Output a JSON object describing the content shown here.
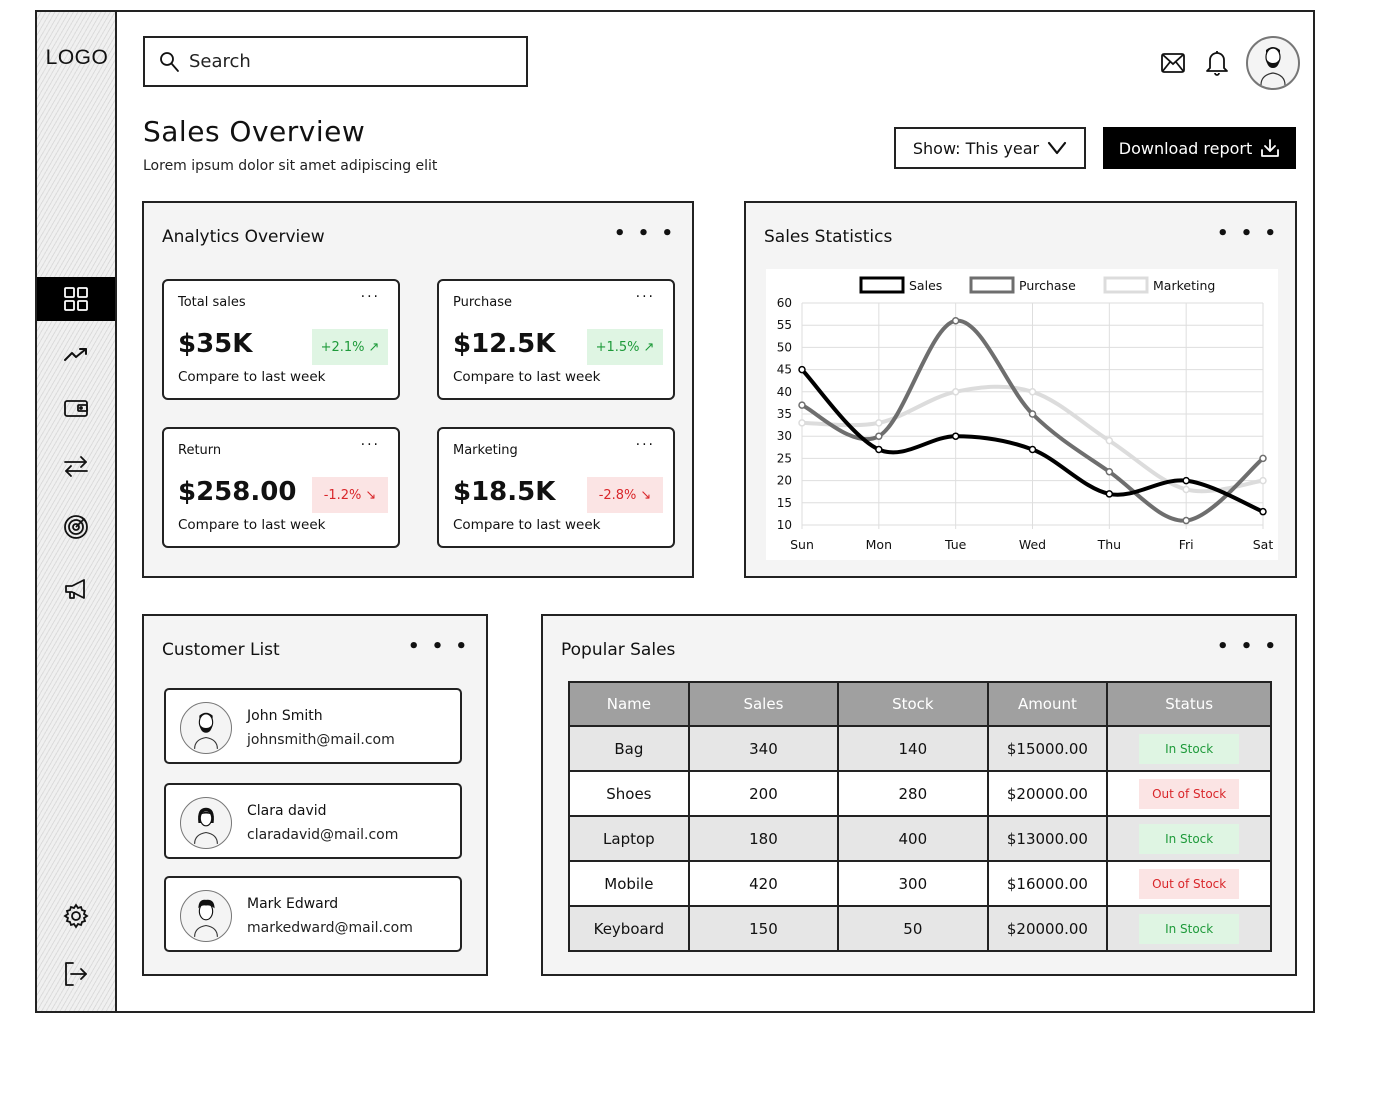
{
  "sidebar": {
    "logo": "LOGO",
    "items": [
      {
        "name": "dashboard",
        "icon": "grid-icon",
        "active": true
      },
      {
        "name": "analytics",
        "icon": "trending-up-icon"
      },
      {
        "name": "wallet",
        "icon": "wallet-icon"
      },
      {
        "name": "transactions",
        "icon": "transfer-arrows-icon"
      },
      {
        "name": "goals",
        "icon": "target-icon"
      },
      {
        "name": "marketing",
        "icon": "megaphone-icon"
      }
    ],
    "bottom_items": [
      {
        "name": "settings",
        "icon": "gear-icon"
      },
      {
        "name": "logout",
        "icon": "logout-icon"
      }
    ]
  },
  "header": {
    "search_placeholder": "Search",
    "icons": [
      "mail-icon",
      "bell-icon",
      "avatar"
    ]
  },
  "page": {
    "title": "Sales Overview",
    "subtitle": "Lorem ipsum dolor sit amet adipiscing elit",
    "filter_label": "Show: This year",
    "download_label": "Download report"
  },
  "analytics": {
    "title": "Analytics Overview",
    "menu": "• • •",
    "cards": [
      {
        "label": "Total sales",
        "value": "$35K",
        "change": "+2.1%",
        "trend": "up",
        "compare": "Compare to last week"
      },
      {
        "label": "Purchase",
        "value": "$12.5K",
        "change": "+1.5%",
        "trend": "up",
        "compare": "Compare to last week"
      },
      {
        "label": "Return",
        "value": "$258.00",
        "change": "-1.2%",
        "trend": "down",
        "compare": "Compare to last week"
      },
      {
        "label": "Marketing",
        "value": "$18.5K",
        "change": "-2.8%",
        "trend": "down",
        "compare": "Compare to last week"
      }
    ],
    "card_menu": "···"
  },
  "statistics": {
    "title": "Sales Statistics",
    "menu": "• • •"
  },
  "chart_data": {
    "type": "line",
    "title": "Sales Statistics",
    "categories": [
      "Sun",
      "Mon",
      "Tue",
      "Wed",
      "Thu",
      "Fri",
      "Sat"
    ],
    "series": [
      {
        "name": "Sales",
        "color": "#000000",
        "values": [
          45,
          27,
          30,
          27,
          17,
          20,
          13
        ]
      },
      {
        "name": "Purchase",
        "color": "#6e6e6e",
        "values": [
          37,
          30,
          56,
          35,
          22,
          11,
          25
        ]
      },
      {
        "name": "Marketing",
        "color": "#dcdcdc",
        "values": [
          33,
          33,
          40,
          40,
          29,
          18,
          20
        ]
      }
    ],
    "yticks": [
      10,
      15,
      20,
      25,
      30,
      35,
      40,
      45,
      50,
      55,
      60
    ],
    "ylim": [
      10,
      60
    ],
    "xlabel": "",
    "ylabel": "",
    "grid": true,
    "legend_position": "top"
  },
  "customers": {
    "title": "Customer List",
    "menu": "• • •",
    "items": [
      {
        "name": "John Smith",
        "email": "johnsmith@mail.com",
        "avatar": "bearded-man"
      },
      {
        "name": "Clara david",
        "email": "claradavid@mail.com",
        "avatar": "woman"
      },
      {
        "name": "Mark Edward",
        "email": "markedward@mail.com",
        "avatar": "man"
      }
    ]
  },
  "popular": {
    "title": "Popular Sales",
    "menu": "• • •",
    "columns": [
      "Name",
      "Sales",
      "Stock",
      "Amount",
      "Status"
    ],
    "rows": [
      {
        "name": "Bag",
        "sales": "340",
        "stock": "140",
        "amount": "$15000.00",
        "status": "In Stock",
        "status_type": "in"
      },
      {
        "name": "Shoes",
        "sales": "200",
        "stock": "280",
        "amount": "$20000.00",
        "status": "Out of Stock",
        "status_type": "out"
      },
      {
        "name": "Laptop",
        "sales": "180",
        "stock": "400",
        "amount": "$13000.00",
        "status": "In Stock",
        "status_type": "in"
      },
      {
        "name": "Mobile",
        "sales": "420",
        "stock": "300",
        "amount": "$16000.00",
        "status": "Out of Stock",
        "status_type": "out"
      },
      {
        "name": "Keyboard",
        "sales": "150",
        "stock": "50",
        "amount": "$20000.00",
        "status": "In Stock",
        "status_type": "in"
      }
    ]
  },
  "colors": {
    "accent": "#000000",
    "positive": "#1e9a3a",
    "positive_bg": "#dff5e3",
    "negative": "#d9262a",
    "negative_bg": "#fbe4e4",
    "panel_bg": "#f4f4f4",
    "table_header": "#a0a0a0"
  }
}
